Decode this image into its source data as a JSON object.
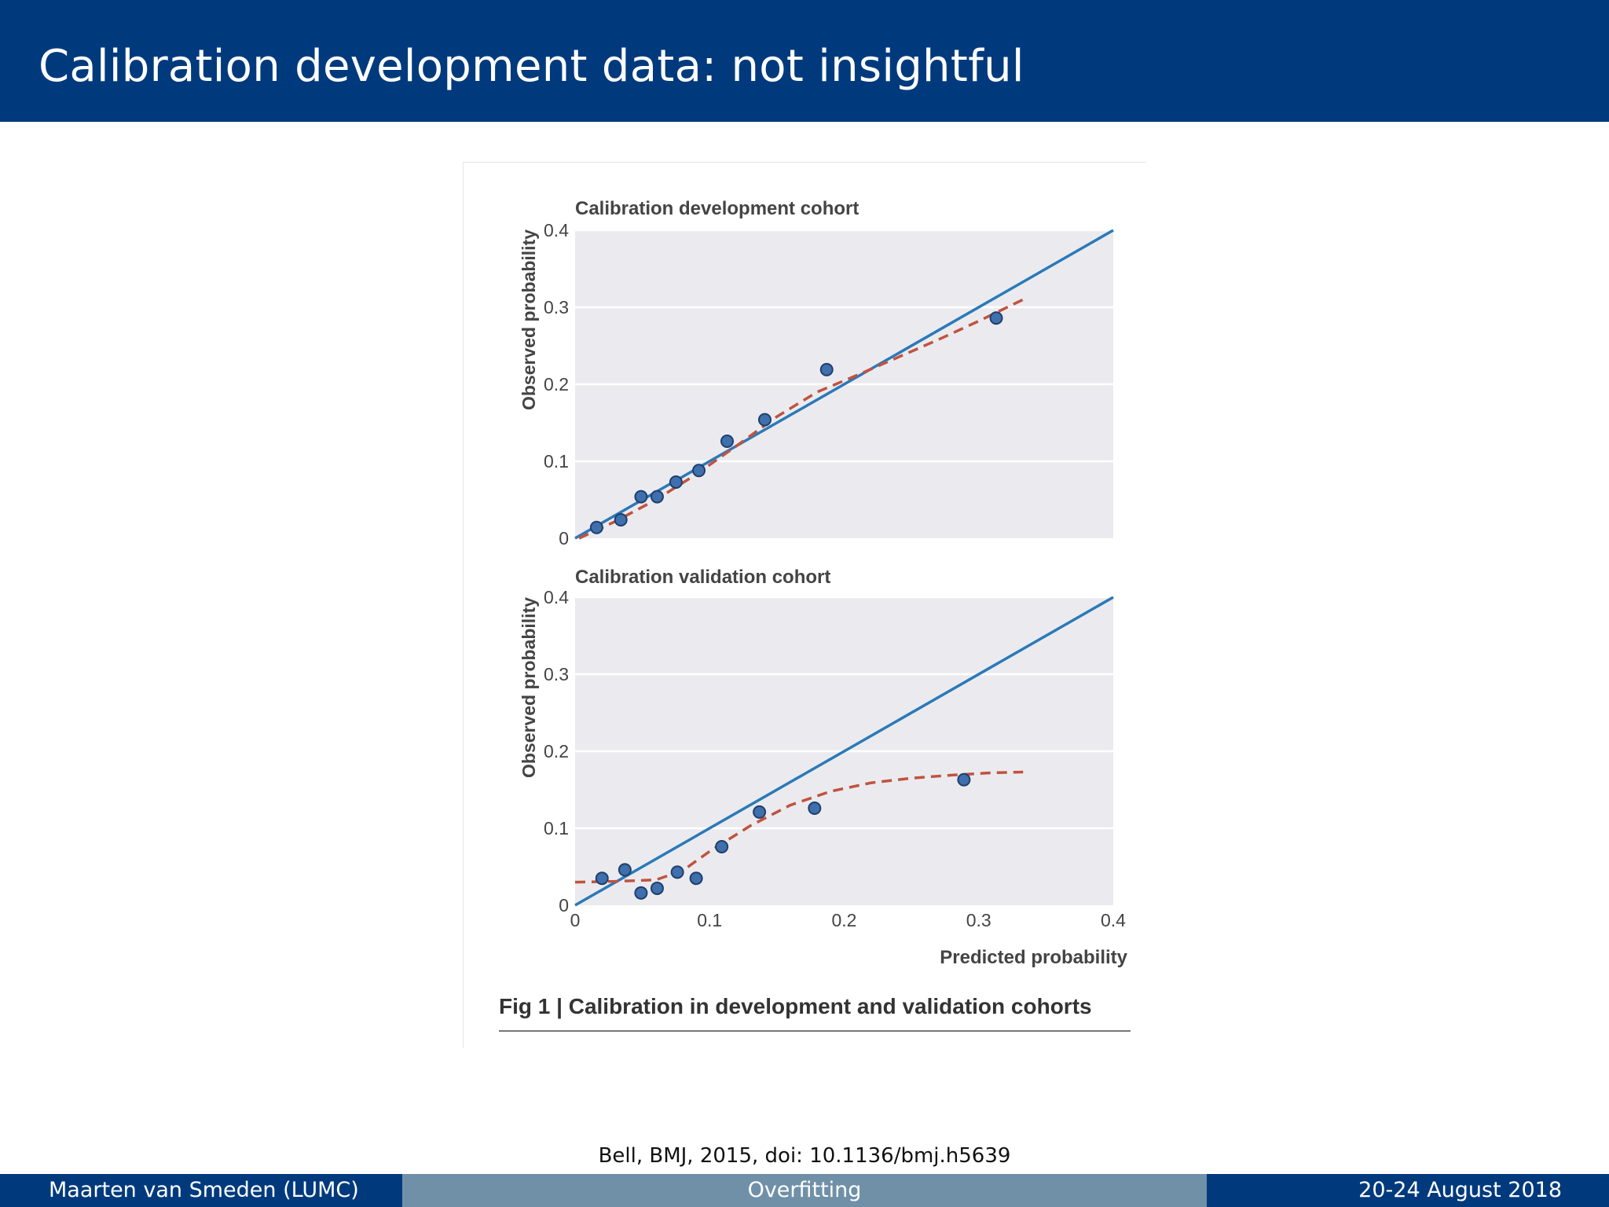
{
  "slide": {
    "title": "Calibration development data: not insightful",
    "citation": "Bell, BMJ, 2015, doi: 10.1136/bmj.h5639"
  },
  "footer": {
    "left": "Maarten van Smeden  (LUMC)",
    "center": "Overfitting",
    "right": "20-24 August 2018"
  },
  "figure": {
    "caption": "Fig 1 | Calibration in development and validation cohorts",
    "colors": {
      "panel_bg": "#ebebef",
      "gridline": "#ffffff",
      "diagonal": "#2b79b8",
      "curve": "#c0533f",
      "point_fill": "#3f6fad",
      "point_stroke": "#1f3f6b",
      "text": "#444444"
    }
  },
  "chart_data": [
    {
      "type": "scatter",
      "title": "Calibration development cohort",
      "ylabel": "Observed probability",
      "xlabel": "",
      "xlim": [
        0,
        0.4
      ],
      "ylim": [
        0,
        0.4
      ],
      "yticks": [
        "0",
        "0.1",
        "0.2",
        "0.3",
        "0.4"
      ],
      "xticks": [],
      "grid": true,
      "series": [
        {
          "kind": "points",
          "x": [
            0.016,
            0.034,
            0.049,
            0.061,
            0.075,
            0.092,
            0.113,
            0.141,
            0.187,
            0.313
          ],
          "y": [
            0.014,
            0.024,
            0.054,
            0.054,
            0.073,
            0.088,
            0.126,
            0.154,
            0.219,
            0.286
          ]
        },
        {
          "kind": "line-solid",
          "x": [
            0,
            0.4
          ],
          "y": [
            0,
            0.4
          ]
        },
        {
          "kind": "line-dashed",
          "x": [
            0.003,
            0.03,
            0.06,
            0.09,
            0.12,
            0.15,
            0.18,
            0.21,
            0.24,
            0.27,
            0.3,
            0.333
          ],
          "y": [
            0.0,
            0.022,
            0.05,
            0.083,
            0.12,
            0.158,
            0.19,
            0.212,
            0.235,
            0.258,
            0.282,
            0.31
          ]
        }
      ]
    },
    {
      "type": "scatter",
      "title": "Calibration validation cohort",
      "ylabel": "Observed probability",
      "xlabel": "Predicted probability",
      "xlim": [
        0,
        0.4
      ],
      "ylim": [
        0,
        0.4
      ],
      "yticks": [
        "0",
        "0.1",
        "0.2",
        "0.3",
        "0.4"
      ],
      "xticks": [
        "0",
        "0.1",
        "0.2",
        "0.3",
        "0.4"
      ],
      "grid": true,
      "series": [
        {
          "kind": "points",
          "x": [
            0.02,
            0.037,
            0.049,
            0.061,
            0.076,
            0.09,
            0.109,
            0.137,
            0.178,
            0.289
          ],
          "y": [
            0.035,
            0.046,
            0.016,
            0.022,
            0.043,
            0.035,
            0.076,
            0.121,
            0.126,
            0.163
          ]
        },
        {
          "kind": "line-solid",
          "x": [
            0,
            0.4
          ],
          "y": [
            0,
            0.4
          ]
        },
        {
          "kind": "line-dashed",
          "x": [
            0,
            0.03,
            0.06,
            0.08,
            0.1,
            0.13,
            0.16,
            0.19,
            0.22,
            0.25,
            0.28,
            0.31,
            0.333
          ],
          "y": [
            0.03,
            0.031,
            0.033,
            0.045,
            0.07,
            0.103,
            0.13,
            0.148,
            0.159,
            0.165,
            0.169,
            0.172,
            0.173
          ]
        }
      ]
    }
  ]
}
